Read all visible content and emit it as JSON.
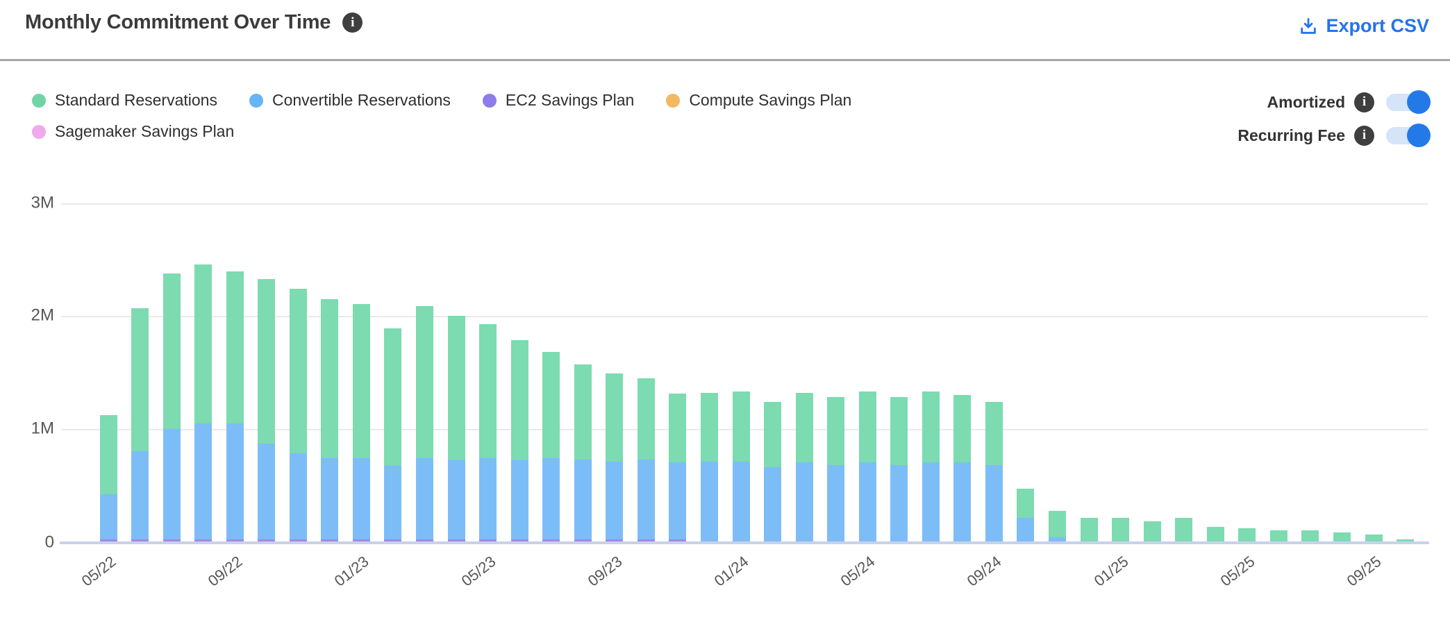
{
  "header": {
    "title": "Monthly Commitment Over Time",
    "export_label": "Export CSV"
  },
  "legend": {
    "items": [
      {
        "label": "Standard Reservations",
        "color": "#70d5a6"
      },
      {
        "label": "Convertible Reservations",
        "color": "#64b4f6"
      },
      {
        "label": "EC2 Savings Plan",
        "color": "#8d7de9"
      },
      {
        "label": "Compute Savings Plan",
        "color": "#f2b963"
      },
      {
        "label": "Sagemaker Savings Plan",
        "color": "#efa9ec"
      }
    ]
  },
  "controls": [
    {
      "label": "Amortized",
      "enabled": true
    },
    {
      "label": "Recurring Fee",
      "enabled": true
    }
  ],
  "colors": {
    "accent_blue": "#2373ee",
    "toggle_track": "#d4e4f9",
    "toggle_knob": "#2479e9",
    "gridline": "#e9e9eb",
    "baseline_axis": "#c9d1ea"
  },
  "chart_data": {
    "type": "bar",
    "stacked": true,
    "value_unit": "millions",
    "ylim": [
      0,
      3
    ],
    "y_tick_labels": [
      "0",
      "1M",
      "2M",
      "3M"
    ],
    "y_tick_values": [
      0,
      1,
      2,
      3
    ],
    "x_tick_every": 4,
    "x_tick_labels": [
      "05/22",
      "09/22",
      "01/23",
      "05/23",
      "09/23",
      "01/24",
      "05/24",
      "09/24",
      "01/25",
      "05/25",
      "09/25"
    ],
    "categories": [
      "05/22",
      "06/22",
      "07/22",
      "08/22",
      "09/22",
      "10/22",
      "11/22",
      "12/22",
      "01/23",
      "02/23",
      "03/23",
      "04/23",
      "05/23",
      "06/23",
      "07/23",
      "08/23",
      "09/23",
      "10/23",
      "11/23",
      "12/23",
      "01/24",
      "02/24",
      "03/24",
      "04/24",
      "05/24",
      "06/24",
      "07/24",
      "08/24",
      "09/24",
      "10/24",
      "11/24",
      "12/24",
      "01/25",
      "02/25",
      "03/25",
      "04/25",
      "05/25",
      "06/25",
      "07/25",
      "08/25",
      "09/25",
      "10/25"
    ],
    "series": [
      {
        "name": "Standard Reservations",
        "color": "#7cdbb0",
        "values": [
          0.7,
          1.27,
          1.38,
          1.41,
          1.35,
          1.46,
          1.46,
          1.41,
          1.37,
          1.22,
          1.35,
          1.28,
          1.19,
          1.07,
          0.94,
          0.84,
          0.78,
          0.72,
          0.61,
          0.61,
          0.62,
          0.58,
          0.62,
          0.6,
          0.63,
          0.6,
          0.63,
          0.6,
          0.56,
          0.26,
          0.23,
          0.21,
          0.21,
          0.18,
          0.21,
          0.13,
          0.12,
          0.1,
          0.1,
          0.08,
          0.06,
          0.02
        ]
      },
      {
        "name": "Convertible Reservations",
        "color": "#7cbdf7",
        "values": [
          0.4,
          0.78,
          0.98,
          1.03,
          1.03,
          0.85,
          0.76,
          0.72,
          0.72,
          0.65,
          0.72,
          0.7,
          0.72,
          0.7,
          0.72,
          0.71,
          0.69,
          0.71,
          0.68,
          0.71,
          0.71,
          0.66,
          0.7,
          0.68,
          0.7,
          0.68,
          0.7,
          0.7,
          0.68,
          0.21,
          0.04,
          0,
          0,
          0,
          0,
          0,
          0,
          0,
          0,
          0,
          0,
          0
        ]
      },
      {
        "name": "EC2 Savings Plan",
        "color": "#a189e8",
        "values": [
          0.02,
          0.02,
          0.02,
          0.02,
          0.02,
          0.02,
          0.02,
          0.02,
          0.02,
          0.02,
          0.02,
          0.02,
          0.02,
          0.02,
          0.02,
          0.02,
          0.02,
          0.02,
          0.02,
          0,
          0,
          0,
          0,
          0,
          0,
          0,
          0,
          0,
          0,
          0,
          0,
          0,
          0,
          0,
          0,
          0,
          0,
          0,
          0,
          0,
          0,
          0
        ]
      },
      {
        "name": "Compute Savings Plan",
        "color": "#f2b963",
        "values": [
          0,
          0,
          0,
          0,
          0,
          0,
          0,
          0,
          0,
          0,
          0,
          0,
          0,
          0,
          0,
          0,
          0,
          0,
          0,
          0,
          0,
          0,
          0,
          0,
          0,
          0,
          0,
          0,
          0,
          0,
          0,
          0,
          0,
          0,
          0,
          0,
          0,
          0,
          0,
          0,
          0,
          0
        ]
      },
      {
        "name": "Sagemaker Savings Plan",
        "color": "#efa9ec",
        "values": [
          0,
          0,
          0,
          0,
          0,
          0,
          0,
          0,
          0,
          0,
          0,
          0,
          0,
          0,
          0,
          0,
          0,
          0,
          0,
          0,
          0,
          0,
          0,
          0,
          0,
          0,
          0,
          0,
          0,
          0,
          0,
          0,
          0,
          0,
          0,
          0,
          0,
          0,
          0,
          0,
          0,
          0
        ]
      }
    ],
    "title": "Monthly Commitment Over Time",
    "xlabel": "",
    "ylabel": "",
    "grid": true,
    "legend_position": "top-left"
  }
}
